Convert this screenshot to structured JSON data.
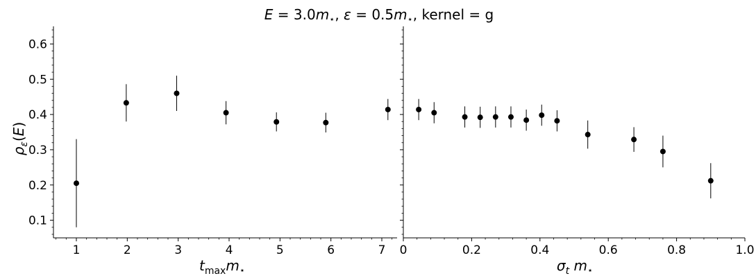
{
  "title": "E = 3.0m⋆,  ε = 0.5m⋆,  kernel = g",
  "ylabel": "ρε(E)",
  "chart_data": [
    {
      "type": "scatter",
      "xlabel": "tmaxm⋆",
      "ylabel": "ρε(E)",
      "xlim": [
        0.55,
        7.3
      ],
      "ylim": [
        0.05,
        0.65
      ],
      "xticks": [
        1,
        2,
        3,
        4,
        5,
        6,
        7
      ],
      "yticks": [
        0.1,
        0.2,
        0.3,
        0.4,
        0.5,
        0.6
      ],
      "x": [
        1,
        1.98,
        2.97,
        3.94,
        4.93,
        5.9,
        7.12
      ],
      "y": [
        0.205,
        0.433,
        0.46,
        0.405,
        0.379,
        0.377,
        0.414
      ],
      "yerr": [
        0.125,
        0.053,
        0.05,
        0.033,
        0.027,
        0.028,
        0.03
      ],
      "grid": false
    },
    {
      "type": "scatter",
      "xlabel": "σt m⋆",
      "ylabel": "",
      "xlim": [
        0,
        1.0
      ],
      "ylim": [
        0.05,
        0.65
      ],
      "xticks": [
        0,
        0.2,
        0.4,
        0.6,
        0.8,
        1.0
      ],
      "x": [
        0.045,
        0.09,
        0.18,
        0.225,
        0.27,
        0.315,
        0.36,
        0.405,
        0.45,
        0.54,
        0.675,
        0.76,
        0.9
      ],
      "y": [
        0.414,
        0.405,
        0.393,
        0.392,
        0.393,
        0.393,
        0.384,
        0.398,
        0.382,
        0.343,
        0.329,
        0.295,
        0.212
      ],
      "yerr": [
        0.03,
        0.03,
        0.03,
        0.03,
        0.03,
        0.03,
        0.03,
        0.03,
        0.03,
        0.04,
        0.035,
        0.045,
        0.05
      ],
      "grid": false
    }
  ]
}
